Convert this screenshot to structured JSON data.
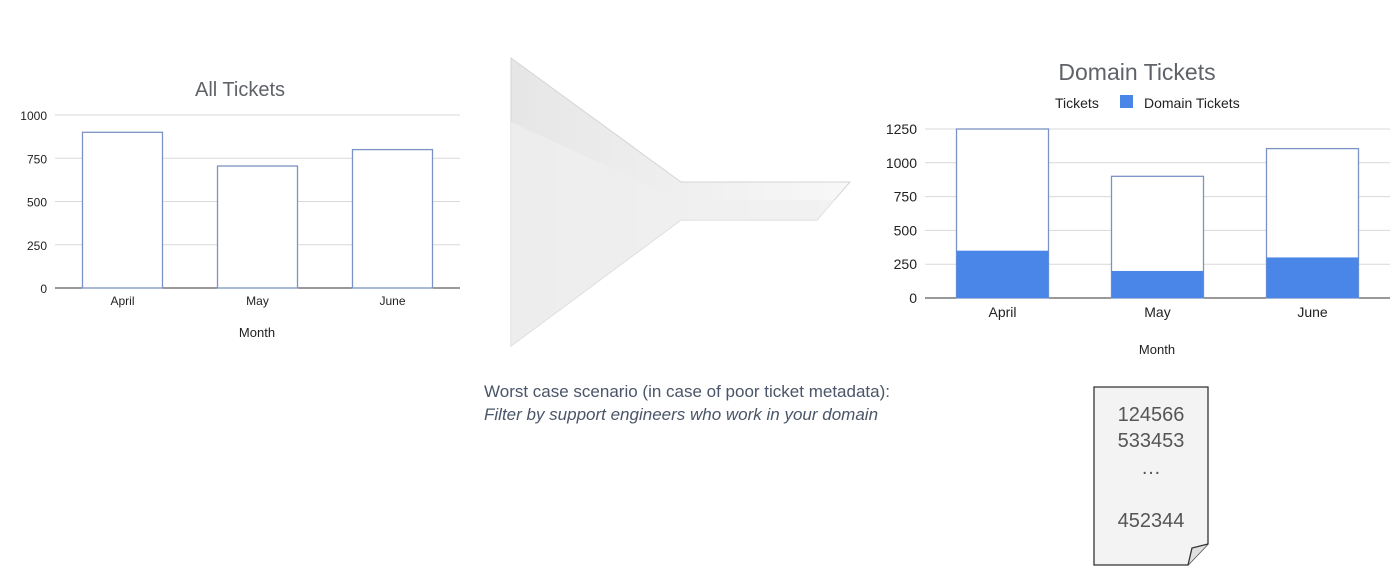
{
  "chart_data": [
    {
      "type": "bar",
      "title": "All Tickets",
      "xlabel": "Month",
      "ylabel": "",
      "categories": [
        "April",
        "May",
        "June"
      ],
      "series": [
        {
          "values": [
            900,
            705,
            800
          ]
        }
      ],
      "ylim": [
        0,
        1000
      ],
      "yticks": [
        "0",
        "250",
        "500",
        "750",
        "1000"
      ],
      "grid": true
    },
    {
      "type": "bar",
      "title": "Domain Tickets",
      "xlabel": "Month",
      "ylabel": "",
      "categories": [
        "April",
        "May",
        "June"
      ],
      "series": [
        {
          "name": "Tickets",
          "values": [
            1250,
            900,
            1105
          ],
          "color": "#ffffff"
        },
        {
          "name": "Domain Tickets",
          "values": [
            350,
            200,
            300
          ],
          "color": "#4a86e8"
        }
      ],
      "ylim": [
        0,
        1250
      ],
      "yticks": [
        "0",
        "250",
        "500",
        "750",
        "1000",
        "1250"
      ],
      "legend": "top",
      "grid": true
    }
  ],
  "caption": {
    "line1": "Worst case scenario (in case of poor ticket metadata):",
    "line2": "Filter by support engineers who work in your domain"
  },
  "ticket_list": {
    "items": [
      "124566",
      "533453",
      "…",
      "452344"
    ]
  },
  "colors": {
    "bar_outline": "#7b93c4",
    "domain_fill": "#4a86e8",
    "grid": "#d9d9d9",
    "axis": "#333333"
  }
}
